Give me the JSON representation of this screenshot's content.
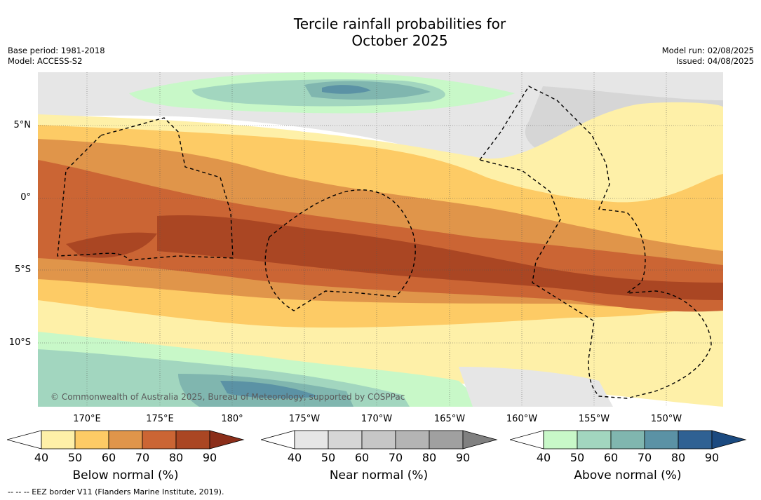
{
  "title": {
    "line1": "Tercile rainfall probabilities for",
    "line2": "October 2025"
  },
  "meta_left": {
    "base_period": "Base period: 1981-2018",
    "model": "Model: ACCESS-S2"
  },
  "meta_right": {
    "model_run": "Model run: 02/08/2025",
    "issued": "Issued: 04/08/2025"
  },
  "map": {
    "lat_labels": [
      "5°N",
      "0°",
      "5°S",
      "10°S"
    ],
    "lon_labels": [
      "170°E",
      "175°E",
      "180°",
      "175°W",
      "170°W",
      "165°W",
      "160°W",
      "155°W",
      "150°W"
    ],
    "copyright": "© Commonwealth of Australia 2025, Bureau of Meteorology, supported by COSPPac",
    "land_color": "#ffffff"
  },
  "colorbars": [
    {
      "label": "Below normal (%)",
      "ticks": [
        "40",
        "50",
        "60",
        "70",
        "80",
        "90"
      ],
      "colors": [
        "#fef0a8",
        "#fdcb65",
        "#e0954a",
        "#cb6534",
        "#aa4623",
        "#8b2e1a"
      ]
    },
    {
      "label": "Near normal (%)",
      "ticks": [
        "40",
        "50",
        "60",
        "70",
        "80",
        "90"
      ],
      "colors": [
        "#e6e6e6",
        "#d6d6d6",
        "#c6c6c6",
        "#b4b4b4",
        "#a0a0a0",
        "#808080"
      ]
    },
    {
      "label": "Above normal (%)",
      "ticks": [
        "40",
        "50",
        "60",
        "70",
        "80",
        "90"
      ],
      "colors": [
        "#c8f8c8",
        "#a2d6bf",
        "#80b6af",
        "#5b92a5",
        "#2f6193",
        "#1b4a80"
      ]
    }
  ],
  "footer": "-- -- -- EEZ border V11 (Flanders Marine Institute, 2019)."
}
